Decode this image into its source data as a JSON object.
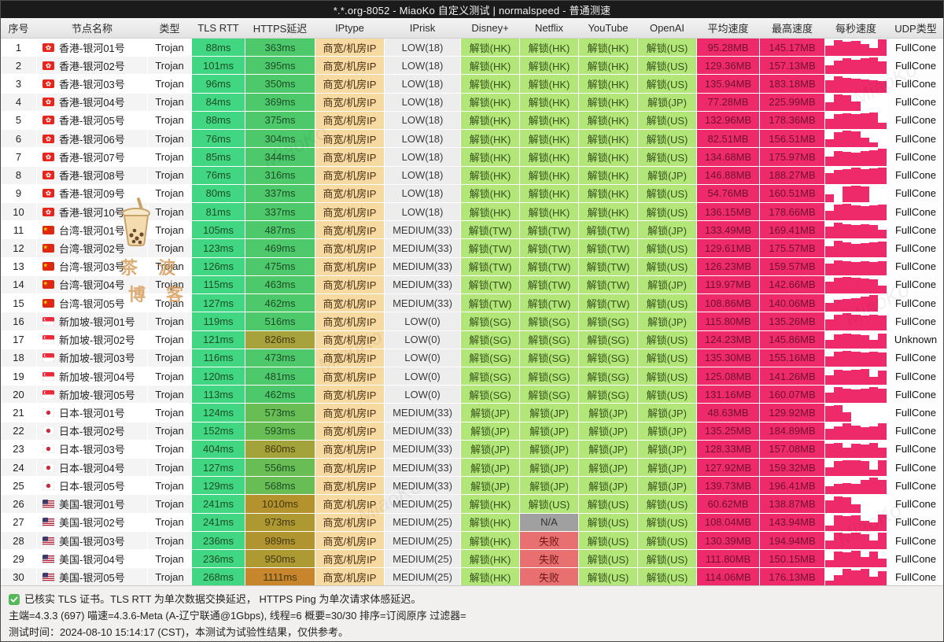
{
  "window": {
    "title": "*.*.org-8052 - MiaoKo 自定义测试 | normalspeed - 普通测速"
  },
  "columns": [
    "序号",
    "节点名称",
    "类型",
    "TLS RTT",
    "HTTPS延迟",
    "IPtype",
    "IPrisk",
    "Disney+",
    "Netflix",
    "YouTube",
    "OpenAI",
    "平均速度",
    "最高速度",
    "每秒速度",
    "UDP类型"
  ],
  "colors": {
    "tls_green": "#40d682",
    "https_green": "#4dc96c",
    "unlock_green": "#b2e678",
    "fail_red": "#e87070",
    "na_gray": "#a0a0a0",
    "speed_pink": "#ef2a6a",
    "iptype_tan": "#f7d9a2"
  },
  "rows": [
    {
      "num": "1",
      "flag": "hk",
      "name": "香港-银河01号",
      "type": "Trojan",
      "tls": "88ms",
      "https": "363ms",
      "https_bg": "#4dc96c",
      "https_fg": "#1d4d26",
      "iptype": "商宽/机房IP",
      "iprisk": "LOW(18)",
      "streams": [
        "解锁(HK)",
        "解锁(HK)",
        "解锁(HK)",
        "解锁(US)"
      ],
      "avg": "95.28MB",
      "max": "145.17MB",
      "bars": [
        0.6,
        0.9,
        0.8,
        0.85,
        0.7,
        0.45,
        0.95
      ],
      "udp": "FullCone"
    },
    {
      "num": "2",
      "flag": "hk",
      "name": "香港-银河02号",
      "type": "Trojan",
      "tls": "101ms",
      "https": "395ms",
      "https_bg": "#4dc96c",
      "https_fg": "#1d4d26",
      "iptype": "商宽/机房IP",
      "iprisk": "LOW(18)",
      "streams": [
        "解锁(HK)",
        "解锁(HK)",
        "解锁(HK)",
        "解锁(US)"
      ],
      "avg": "129.36MB",
      "max": "157.13MB",
      "bars": [
        0.5,
        0.8,
        0.9,
        0.85,
        0.9,
        0.95,
        0.75
      ],
      "udp": "FullCone"
    },
    {
      "num": "3",
      "flag": "hk",
      "name": "香港-银河03号",
      "type": "Trojan",
      "tls": "96ms",
      "https": "350ms",
      "https_bg": "#4dc96c",
      "https_fg": "#1d4d26",
      "iptype": "商宽/机房IP",
      "iprisk": "LOW(18)",
      "streams": [
        "解锁(HK)",
        "解锁(HK)",
        "解锁(HK)",
        "解锁(US)"
      ],
      "avg": "135.94MB",
      "max": "183.18MB",
      "bars": [
        0.7,
        0.95,
        0.85,
        0.8,
        0.75,
        0.7,
        0.65
      ],
      "udp": "FullCone"
    },
    {
      "num": "4",
      "flag": "hk",
      "name": "香港-银河04号",
      "type": "Trojan",
      "tls": "84ms",
      "https": "369ms",
      "https_bg": "#4dc96c",
      "https_fg": "#1d4d26",
      "iptype": "商宽/机房IP",
      "iprisk": "LOW(18)",
      "streams": [
        "解锁(HK)",
        "解锁(HK)",
        "解锁(HK)",
        "解锁(JP)"
      ],
      "avg": "77.28MB",
      "max": "225.99MB",
      "bars": [
        0.5,
        0.95,
        0.9,
        0.55,
        0,
        0,
        0
      ],
      "udp": "FullCone"
    },
    {
      "num": "5",
      "flag": "hk",
      "name": "香港-银河05号",
      "type": "Trojan",
      "tls": "88ms",
      "https": "375ms",
      "https_bg": "#4dc96c",
      "https_fg": "#1d4d26",
      "iptype": "商宽/机房IP",
      "iprisk": "LOW(18)",
      "streams": [
        "解锁(HK)",
        "解锁(HK)",
        "解锁(HK)",
        "解锁(US)"
      ],
      "avg": "132.96MB",
      "max": "178.36MB",
      "bars": [
        0.6,
        0.85,
        0.9,
        0.85,
        0.9,
        0.95,
        0.35
      ],
      "udp": "FullCone"
    },
    {
      "num": "6",
      "flag": "hk",
      "name": "香港-银河06号",
      "type": "Trojan",
      "tls": "76ms",
      "https": "304ms",
      "https_bg": "#4dc96c",
      "https_fg": "#1d4d26",
      "iptype": "商宽/机房IP",
      "iprisk": "LOW(18)",
      "streams": [
        "解锁(HK)",
        "解锁(HK)",
        "解锁(HK)",
        "解锁(US)"
      ],
      "avg": "82.51MB",
      "max": "156.51MB",
      "bars": [
        0.45,
        0.85,
        0.95,
        0.9,
        0.55,
        0.3,
        0
      ],
      "udp": "FullCone"
    },
    {
      "num": "7",
      "flag": "hk",
      "name": "香港-银河07号",
      "type": "Trojan",
      "tls": "85ms",
      "https": "344ms",
      "https_bg": "#4dc96c",
      "https_fg": "#1d4d26",
      "iptype": "商宽/机房IP",
      "iprisk": "LOW(18)",
      "streams": [
        "解锁(HK)",
        "解锁(HK)",
        "解锁(HK)",
        "解锁(US)"
      ],
      "avg": "134.68MB",
      "max": "175.97MB",
      "bars": [
        0.5,
        0.85,
        0.8,
        0.75,
        0.85,
        0.9,
        0.95
      ],
      "udp": "FullCone"
    },
    {
      "num": "8",
      "flag": "hk",
      "name": "香港-银河08号",
      "type": "Trojan",
      "tls": "76ms",
      "https": "316ms",
      "https_bg": "#4dc96c",
      "https_fg": "#1d4d26",
      "iptype": "商宽/机房IP",
      "iprisk": "LOW(18)",
      "streams": [
        "解锁(HK)",
        "解锁(HK)",
        "解锁(HK)",
        "解锁(JP)"
      ],
      "avg": "146.88MB",
      "max": "188.27MB",
      "bars": [
        0.6,
        0.8,
        0.85,
        0.95,
        0.85,
        0.9,
        0.95
      ],
      "udp": "FullCone"
    },
    {
      "num": "9",
      "flag": "hk",
      "name": "香港-银河09号",
      "type": "Trojan",
      "tls": "80ms",
      "https": "337ms",
      "https_bg": "#4dc96c",
      "https_fg": "#1d4d26",
      "iptype": "商宽/机房IP",
      "iprisk": "LOW(18)",
      "streams": [
        "解锁(HK)",
        "解锁(HK)",
        "解锁(HK)",
        "解锁(US)"
      ],
      "avg": "54.76MB",
      "max": "160.51MB",
      "bars": [
        0.45,
        0,
        0.9,
        0.95,
        0.9,
        0,
        0
      ],
      "udp": "FullCone"
    },
    {
      "num": "10",
      "flag": "hk",
      "name": "香港-银河10号",
      "type": "Trojan",
      "tls": "81ms",
      "https": "337ms",
      "https_bg": "#4dc96c",
      "https_fg": "#1d4d26",
      "iptype": "商宽/机房IP",
      "iprisk": "LOW(18)",
      "streams": [
        "解锁(HK)",
        "解锁(HK)",
        "解锁(HK)",
        "解锁(US)"
      ],
      "avg": "136.15MB",
      "max": "178.66MB",
      "bars": [
        0.55,
        0.9,
        0.95,
        0.85,
        0.8,
        0.85,
        0.9
      ],
      "udp": "FullCone"
    },
    {
      "num": "11",
      "flag": "cn",
      "name": "台湾-银河01号",
      "type": "Trojan",
      "tls": "105ms",
      "https": "487ms",
      "https_bg": "#4dc96c",
      "https_fg": "#1d4d26",
      "iptype": "商宽/机房IP",
      "iprisk": "MEDIUM(33)",
      "streams": [
        "解锁(TW)",
        "解锁(TW)",
        "解锁(TW)",
        "解锁(JP)"
      ],
      "avg": "133.49MB",
      "max": "169.41MB",
      "bars": [
        0.7,
        0.9,
        0.85,
        0.8,
        0.85,
        0.8,
        0.5
      ],
      "udp": "FullCone"
    },
    {
      "num": "12",
      "flag": "cn",
      "name": "台湾-银河02号",
      "type": "Trojan",
      "tls": "123ms",
      "https": "469ms",
      "https_bg": "#4dc96c",
      "https_fg": "#1d4d26",
      "iptype": "商宽/机房IP",
      "iprisk": "MEDIUM(33)",
      "streams": [
        "解锁(TW)",
        "解锁(TW)",
        "解锁(TW)",
        "解锁(US)"
      ],
      "avg": "129.61MB",
      "max": "175.57MB",
      "bars": [
        0.6,
        0.95,
        0.85,
        0.75,
        0.8,
        0.85,
        0.9
      ],
      "udp": "FullCone"
    },
    {
      "num": "13",
      "flag": "cn",
      "name": "台湾-银河03号",
      "type": "Trojan",
      "tls": "126ms",
      "https": "475ms",
      "https_bg": "#4dc96c",
      "https_fg": "#1d4d26",
      "iptype": "商宽/机房IP",
      "iprisk": "MEDIUM(33)",
      "streams": [
        "解锁(TW)",
        "解锁(TW)",
        "解锁(TW)",
        "解锁(US)"
      ],
      "avg": "126.23MB",
      "max": "159.57MB",
      "bars": [
        0.65,
        0.85,
        0.8,
        0.75,
        0.8,
        0.75,
        0.8
      ],
      "udp": "FullCone"
    },
    {
      "num": "14",
      "flag": "cn",
      "name": "台湾-银河04号",
      "type": "Trojan",
      "tls": "115ms",
      "https": "463ms",
      "https_bg": "#4dc96c",
      "https_fg": "#1d4d26",
      "iptype": "商宽/机房IP",
      "iprisk": "MEDIUM(33)",
      "streams": [
        "解锁(TW)",
        "解锁(TW)",
        "解锁(TW)",
        "解锁(JP)"
      ],
      "avg": "119.97MB",
      "max": "142.66MB",
      "bars": [
        0.7,
        0.9,
        0.95,
        0.9,
        0.85,
        0.8,
        0.45
      ],
      "udp": "FullCone"
    },
    {
      "num": "15",
      "flag": "cn",
      "name": "台湾-银河05号",
      "type": "Trojan",
      "tls": "127ms",
      "https": "462ms",
      "https_bg": "#4dc96c",
      "https_fg": "#1d4d26",
      "iptype": "商宽/机房IP",
      "iprisk": "MEDIUM(33)",
      "streams": [
        "解锁(TW)",
        "解锁(TW)",
        "解锁(TW)",
        "解锁(US)"
      ],
      "avg": "108.86MB",
      "max": "140.06MB",
      "bars": [
        0.5,
        0.7,
        0.75,
        0.8,
        0.85,
        0.95,
        0
      ],
      "udp": "FullCone"
    },
    {
      "num": "16",
      "flag": "sg",
      "name": "新加坡-银河01号",
      "type": "Trojan",
      "tls": "119ms",
      "https": "516ms",
      "https_bg": "#4dc96c",
      "https_fg": "#1d4d26",
      "iptype": "商宽/机房IP",
      "iprisk": "LOW(0)",
      "streams": [
        "解锁(SG)",
        "解锁(SG)",
        "解锁(SG)",
        "解锁(JP)"
      ],
      "avg": "115.80MB",
      "max": "135.26MB",
      "bars": [
        0.6,
        0.9,
        0.95,
        0.9,
        0.85,
        0.9,
        0.85
      ],
      "udp": "FullCone"
    },
    {
      "num": "17",
      "flag": "sg",
      "name": "新加坡-银河02号",
      "type": "Trojan",
      "tls": "121ms",
      "https": "826ms",
      "https_bg": "#a8a23c",
      "https_fg": "#43380c",
      "iptype": "商宽/机房IP",
      "iprisk": "LOW(0)",
      "streams": [
        "解锁(SG)",
        "解锁(SG)",
        "解锁(SG)",
        "解锁(US)"
      ],
      "avg": "124.23MB",
      "max": "145.86MB",
      "bars": [
        0.5,
        0.8,
        0.85,
        0.8,
        0.75,
        0.5,
        0.85
      ],
      "udp": "Unknown"
    },
    {
      "num": "18",
      "flag": "sg",
      "name": "新加坡-银河03号",
      "type": "Trojan",
      "tls": "116ms",
      "https": "473ms",
      "https_bg": "#4dc96c",
      "https_fg": "#1d4d26",
      "iptype": "商宽/机房IP",
      "iprisk": "LOW(0)",
      "streams": [
        "解锁(SG)",
        "解锁(SG)",
        "解锁(SG)",
        "解锁(US)"
      ],
      "avg": "135.30MB",
      "max": "155.16MB",
      "bars": [
        0.6,
        0.85,
        0.9,
        0.85,
        0.8,
        0.85,
        0.8
      ],
      "udp": "FullCone"
    },
    {
      "num": "19",
      "flag": "sg",
      "name": "新加坡-银河04号",
      "type": "Trojan",
      "tls": "120ms",
      "https": "481ms",
      "https_bg": "#4dc96c",
      "https_fg": "#1d4d26",
      "iptype": "商宽/机房IP",
      "iprisk": "LOW(0)",
      "streams": [
        "解锁(SG)",
        "解锁(SG)",
        "解锁(SG)",
        "解锁(US)"
      ],
      "avg": "125.08MB",
      "max": "141.26MB",
      "bars": [
        0.55,
        0.85,
        0.8,
        0.85,
        0.9,
        0.45,
        0.8
      ],
      "udp": "FullCone"
    },
    {
      "num": "20",
      "flag": "sg",
      "name": "新加坡-银河05号",
      "type": "Trojan",
      "tls": "113ms",
      "https": "462ms",
      "https_bg": "#4dc96c",
      "https_fg": "#1d4d26",
      "iptype": "商宽/机房IP",
      "iprisk": "LOW(0)",
      "streams": [
        "解锁(SG)",
        "解锁(SG)",
        "解锁(SG)",
        "解锁(US)"
      ],
      "avg": "131.16MB",
      "max": "160.07MB",
      "bars": [
        0.6,
        0.9,
        0.85,
        0.8,
        0.85,
        0.9,
        0.85
      ],
      "udp": "FullCone"
    },
    {
      "num": "21",
      "flag": "jp",
      "name": "日本-银河01号",
      "type": "Trojan",
      "tls": "124ms",
      "https": "573ms",
      "https_bg": "#68bd54",
      "https_fg": "#1d4d26",
      "iptype": "商宽/机房IP",
      "iprisk": "MEDIUM(33)",
      "streams": [
        "解锁(JP)",
        "解锁(JP)",
        "解锁(JP)",
        "解锁(JP)"
      ],
      "avg": "48.63MB",
      "max": "129.92MB",
      "bars": [
        0.9,
        0.95,
        0.5,
        0,
        0,
        0,
        0
      ],
      "udp": "FullCone"
    },
    {
      "num": "22",
      "flag": "jp",
      "name": "日本-银河02号",
      "type": "Trojan",
      "tls": "152ms",
      "https": "593ms",
      "https_bg": "#68bd54",
      "https_fg": "#1d4d26",
      "iptype": "商宽/机房IP",
      "iprisk": "MEDIUM(33)",
      "streams": [
        "解锁(JP)",
        "解锁(JP)",
        "解锁(JP)",
        "解锁(JP)"
      ],
      "avg": "135.25MB",
      "max": "184.89MB",
      "bars": [
        0.6,
        0.75,
        0.95,
        0.8,
        0.7,
        0.75,
        0.95
      ],
      "udp": "FullCone"
    },
    {
      "num": "23",
      "flag": "jp",
      "name": "日本-银河03号",
      "type": "Trojan",
      "tls": "404ms",
      "https": "860ms",
      "https_bg": "#a3a33c",
      "https_fg": "#43380c",
      "iptype": "商宽/机房IP",
      "iprisk": "MEDIUM(33)",
      "streams": [
        "解锁(JP)",
        "解锁(JP)",
        "解锁(JP)",
        "解锁(JP)"
      ],
      "avg": "128.33MB",
      "max": "157.08MB",
      "bars": [
        0.8,
        0.85,
        0.6,
        0.8,
        0.75,
        0.85,
        0.6
      ],
      "udp": "FullCone"
    },
    {
      "num": "24",
      "flag": "jp",
      "name": "日本-银河04号",
      "type": "Trojan",
      "tls": "127ms",
      "https": "556ms",
      "https_bg": "#68bd54",
      "https_fg": "#1d4d26",
      "iptype": "商宽/机房IP",
      "iprisk": "MEDIUM(33)",
      "streams": [
        "解锁(JP)",
        "解锁(JP)",
        "解锁(JP)",
        "解锁(JP)"
      ],
      "avg": "127.92MB",
      "max": "159.32MB",
      "bars": [
        0.5,
        0.85,
        0.9,
        0.9,
        0.85,
        0.35,
        0.9
      ],
      "udp": "FullCone"
    },
    {
      "num": "25",
      "flag": "jp",
      "name": "日本-银河05号",
      "type": "Trojan",
      "tls": "129ms",
      "https": "568ms",
      "https_bg": "#68bd54",
      "https_fg": "#1d4d26",
      "iptype": "商宽/机房IP",
      "iprisk": "MEDIUM(33)",
      "streams": [
        "解锁(JP)",
        "解锁(JP)",
        "解锁(JP)",
        "解锁(JP)"
      ],
      "avg": "139.73MB",
      "max": "196.41MB",
      "bars": [
        0.45,
        0.6,
        0.65,
        0.6,
        0.85,
        0.95,
        0.85
      ],
      "udp": "FullCone"
    },
    {
      "num": "26",
      "flag": "us",
      "name": "美国-银河01号",
      "type": "Trojan",
      "tls": "241ms",
      "https": "1010ms",
      "https_bg": "#b4922e",
      "https_fg": "#43380c",
      "iptype": "商宽/机房IP",
      "iprisk": "MEDIUM(25)",
      "streams": [
        "解锁(HK)",
        "解锁(US)",
        "解锁(US)",
        "解锁(US)"
      ],
      "avg": "60.62MB",
      "max": "138.87MB",
      "bars": [
        0.7,
        0.95,
        0.9,
        0.5,
        0,
        0,
        0
      ],
      "udp": "FullCone"
    },
    {
      "num": "27",
      "flag": "us",
      "name": "美国-银河02号",
      "type": "Trojan",
      "tls": "241ms",
      "https": "973ms",
      "https_bg": "#ad9832",
      "https_fg": "#43380c",
      "iptype": "商宽/机房IP",
      "iprisk": "MEDIUM(25)",
      "streams": [
        "解锁(HK)",
        "N/A",
        "解锁(US)",
        "解锁(US)"
      ],
      "avg": "108.04MB",
      "max": "143.94MB",
      "bars": [
        0.3,
        0.9,
        0.85,
        0.9,
        0.6,
        0.5,
        0.95
      ],
      "udp": "FullCone"
    },
    {
      "num": "28",
      "flag": "us",
      "name": "美国-银河03号",
      "type": "Trojan",
      "tls": "236ms",
      "https": "989ms",
      "https_bg": "#b09430",
      "https_fg": "#43380c",
      "iptype": "商宽/机房IP",
      "iprisk": "MEDIUM(25)",
      "streams": [
        "解锁(HK)",
        "失败",
        "解锁(US)",
        "解锁(US)"
      ],
      "avg": "130.39MB",
      "max": "194.94MB",
      "bars": [
        0.5,
        0.95,
        0.9,
        0.95,
        0.85,
        0.5,
        0.95
      ],
      "udp": "FullCone"
    },
    {
      "num": "29",
      "flag": "us",
      "name": "美国-银河04号",
      "type": "Trojan",
      "tls": "236ms",
      "https": "950ms",
      "https_bg": "#ae9a33",
      "https_fg": "#43380c",
      "iptype": "商宽/机房IP",
      "iprisk": "MEDIUM(25)",
      "streams": [
        "解锁(HK)",
        "失败",
        "解锁(US)",
        "解锁(US)"
      ],
      "avg": "111.80MB",
      "max": "150.15MB",
      "bars": [
        0.4,
        0.9,
        0.85,
        0.95,
        0.6,
        0.9,
        0.5
      ],
      "udp": "FullCone"
    },
    {
      "num": "30",
      "flag": "us",
      "name": "美国-银河05号",
      "type": "Trojan",
      "tls": "268ms",
      "https": "1111ms",
      "https_bg": "#c8862c",
      "https_fg": "#43380c",
      "iptype": "商宽/机房IP",
      "iprisk": "MEDIUM(25)",
      "streams": [
        "解锁(HK)",
        "失败",
        "解锁(US)",
        "解锁(US)"
      ],
      "avg": "114.06MB",
      "max": "176.13MB",
      "bars": [
        0.3,
        0.6,
        0.95,
        0.9,
        0.95,
        0.5,
        0.85
      ],
      "udp": "FullCone"
    }
  ],
  "footer": {
    "line1": "已核实 TLS 证书。TLS RTT 为单次数据交换延迟， HTTPS Ping 为单次请求体感延迟。",
    "line2": "主端=4.3.3 (697) 喵速=4.3.6-Meta (A-辽宁联通@1Gbps), 线程=6 概要=30/30 排序=订阅原序 过滤器=",
    "line3": "测试时间：2024-08-10 15:14:17 (CST)，本测试为试验性结果，仅供参考。"
  },
  "watermarks": {
    "diagonal_text": "MiaoKo",
    "blog_text_line1": "茶 波",
    "blog_text_line2": "博 客",
    "cup_icon": "bubble-tea-cup-icon"
  }
}
